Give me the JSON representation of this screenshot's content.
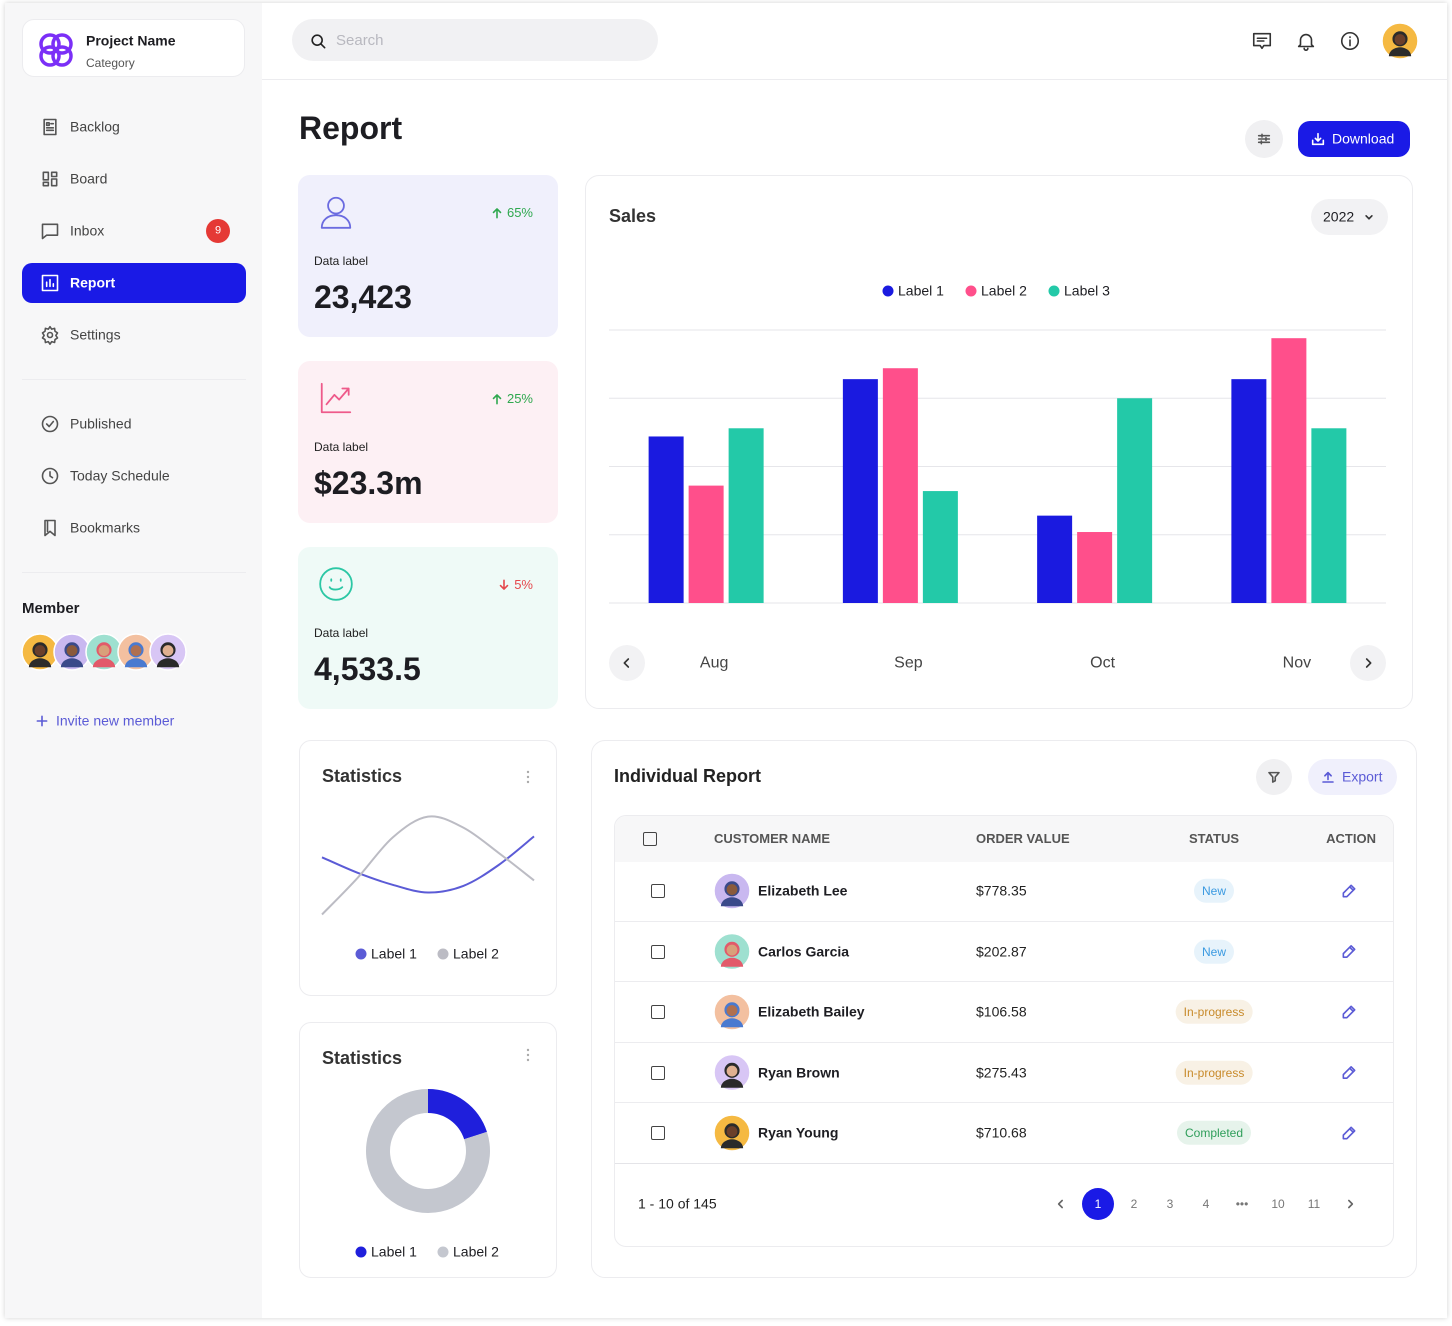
{
  "sidebar": {
    "project_name": "Project Name",
    "category": "Category",
    "nav": [
      {
        "label": "Backlog"
      },
      {
        "label": "Board"
      },
      {
        "label": "Inbox",
        "badge": 9
      },
      {
        "label": "Report",
        "active": true
      },
      {
        "label": "Settings"
      }
    ],
    "nav2": [
      {
        "label": "Published"
      },
      {
        "label": "Today Schedule"
      },
      {
        "label": "Bookmarks"
      }
    ],
    "member_title": "Member",
    "invite": "Invite new member"
  },
  "header": {
    "search": "Search"
  },
  "page": {
    "title": "Report",
    "download": "Download"
  },
  "kpis": [
    {
      "change": "65%",
      "trend": "up",
      "label": "Data label",
      "value": "23,423",
      "color": "#6b6be0",
      "background": "#f0f0fc"
    },
    {
      "change": "25%",
      "trend": "up",
      "label": "Data label",
      "value": "$23.3m",
      "color": "#ee5a8a",
      "background": "#fdf0f4"
    },
    {
      "change": "5%",
      "trend": "down",
      "label": "Data label",
      "value": "4,533.5",
      "color": "#2cc7a5",
      "background": "#effaf7"
    }
  ],
  "chart_data": [
    {
      "type": "bar",
      "title": "Sales",
      "period": "2022",
      "categories": [
        "Aug",
        "Sep",
        "Oct",
        "Nov"
      ],
      "series": [
        {
          "name": "Label 1",
          "color": "#1a1ae0",
          "values": [
            61,
            82,
            32,
            82
          ]
        },
        {
          "name": "Label 2",
          "color": "#ff4f8b",
          "values": [
            43,
            86,
            26,
            97
          ]
        },
        {
          "name": "Label 3",
          "color": "#23c9a8",
          "values": [
            64,
            41,
            75,
            64
          ]
        }
      ],
      "ylim": [
        0,
        100
      ],
      "yticks": [
        0,
        25,
        50,
        75,
        100
      ],
      "grid": true
    },
    {
      "type": "line",
      "title": "Statistics",
      "x": [
        0,
        1,
        2,
        3,
        4,
        5,
        6
      ],
      "xlim": [
        0,
        6
      ],
      "ylim": [
        0,
        100
      ],
      "series": [
        {
          "name": "Label 1",
          "color": "#5b5bd6",
          "values": [
            57,
            43,
            32,
            25,
            31,
            50,
            76
          ]
        },
        {
          "name": "Label 2",
          "color": "#bcbcc4",
          "values": [
            5,
            38,
            75,
            94,
            84,
            61,
            36
          ]
        }
      ]
    },
    {
      "type": "pie",
      "title": "Statistics",
      "categories": [
        "Label 1",
        "Label 2"
      ],
      "values": [
        20,
        80
      ],
      "colors": [
        "#1f1fdc",
        "#c4c7cf"
      ]
    }
  ],
  "report": {
    "title": "Individual Report",
    "export": "Export",
    "columns": [
      "CUSTOMER NAME",
      "ORDER VALUE",
      "STATUS",
      "ACTION"
    ],
    "rows": [
      {
        "name": "Elizabeth Lee",
        "order_value": "$778.35",
        "status": "New",
        "status_color": "#3b9ae1"
      },
      {
        "name": "Carlos Garcia",
        "order_value": "$202.87",
        "status": "New",
        "status_color": "#3b9ae1"
      },
      {
        "name": "Elizabeth Bailey",
        "order_value": "$106.58",
        "status": "In-progress",
        "status_color": "#c88a2a"
      },
      {
        "name": "Ryan Brown",
        "order_value": "$275.43",
        "status": "In-progress",
        "status_color": "#c88a2a"
      },
      {
        "name": "Ryan Young",
        "order_value": "$710.68",
        "status": "Completed",
        "status_color": "#2f9e5a"
      }
    ],
    "summary": "1 - 10 of 145",
    "pages": [
      {
        "label": "1",
        "active": true
      },
      {
        "label": "2"
      },
      {
        "label": "3"
      },
      {
        "label": "4"
      },
      {
        "label": "•••"
      },
      {
        "label": "10"
      },
      {
        "label": "11"
      }
    ]
  }
}
